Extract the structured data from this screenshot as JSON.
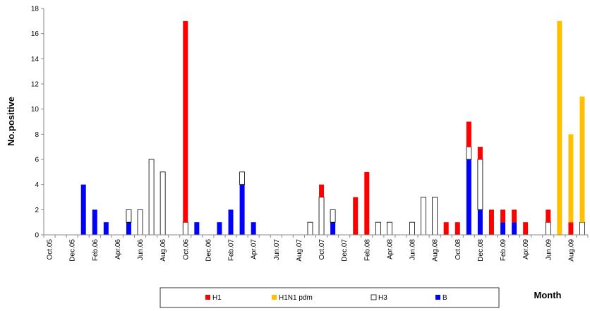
{
  "chart_data": {
    "type": "bar",
    "stacked": true,
    "ylabel": "No.positive",
    "xlabel": "Month",
    "ylim": [
      0,
      18
    ],
    "yticks": [
      0,
      2,
      4,
      6,
      8,
      10,
      12,
      14,
      16,
      18
    ],
    "grid": false,
    "legend_position": "bottom",
    "tick_labels": [
      "Oct.05",
      "Dec.05",
      "Feb.06",
      "Apr.06",
      "Jun.06",
      "Aug.06",
      "Oct.06",
      "Dec.06",
      "Feb.07",
      "Apr.07",
      "Jun.07",
      "Aug.07",
      "Oct.07",
      "Dec.07",
      "Feb.08",
      "Apr.08",
      "Jun.08",
      "Aug.08",
      "Oct.08",
      "Dec.08",
      "Feb.09",
      "Apr.09",
      "Jun.09",
      "Aug.09"
    ],
    "categories": [
      "Oct.05",
      "Nov.05",
      "Dec.05",
      "Jan.06",
      "Feb.06",
      "Mar.06",
      "Apr.06",
      "May.06",
      "Jun.06",
      "Jul.06",
      "Aug.06",
      "Sep.06",
      "Oct.06",
      "Nov.06",
      "Dec.06",
      "Jan.07",
      "Feb.07",
      "Mar.07",
      "Apr.07",
      "May.07",
      "Jun.07",
      "Jul.07",
      "Aug.07",
      "Sep.07",
      "Oct.07",
      "Nov.07",
      "Dec.07",
      "Jan.08",
      "Feb.08",
      "Mar.08",
      "Apr.08",
      "May.08",
      "Jun.08",
      "Jul.08",
      "Aug.08",
      "Sep.08",
      "Oct.08",
      "Nov.08",
      "Dec.08",
      "Jan.09",
      "Feb.09",
      "Mar.09",
      "Apr.09",
      "May.09",
      "Jun.09",
      "Jul.09",
      "Aug.09",
      "Sep.09"
    ],
    "series": [
      {
        "name": "B",
        "color": "#0000FF",
        "values": [
          0,
          0,
          0,
          4,
          2,
          1,
          0,
          1,
          0,
          0,
          0,
          0,
          0,
          1,
          0,
          1,
          2,
          4,
          1,
          0,
          0,
          0,
          0,
          0,
          0,
          1,
          0,
          0,
          0,
          0,
          0,
          0,
          0,
          0,
          0,
          0,
          0,
          6,
          2,
          0,
          1,
          1,
          0,
          0,
          0,
          0,
          0,
          0
        ]
      },
      {
        "name": "H3",
        "color": "#FFFFFF",
        "values": [
          0,
          0,
          0,
          0,
          0,
          0,
          0,
          1,
          2,
          6,
          5,
          0,
          1,
          0,
          0,
          0,
          0,
          1,
          0,
          0,
          0,
          0,
          0,
          1,
          3,
          1,
          0,
          0,
          0,
          1,
          1,
          0,
          1,
          3,
          3,
          0,
          0,
          1,
          4,
          0,
          0,
          0,
          0,
          0,
          1,
          0,
          0,
          1
        ]
      },
      {
        "name": "H1",
        "color": "#FF0000",
        "values": [
          0,
          0,
          0,
          0,
          0,
          0,
          0,
          0,
          0,
          0,
          0,
          0,
          16,
          0,
          0,
          0,
          0,
          0,
          0,
          0,
          0,
          0,
          0,
          0,
          1,
          0,
          0,
          3,
          5,
          0,
          0,
          0,
          0,
          0,
          0,
          1,
          1,
          2,
          1,
          2,
          1,
          1,
          1,
          0,
          1,
          0,
          1,
          0
        ]
      },
      {
        "name": "H1N1 pdm",
        "color": "#FFC000",
        "values": [
          0,
          0,
          0,
          0,
          0,
          0,
          0,
          0,
          0,
          0,
          0,
          0,
          0,
          0,
          0,
          0,
          0,
          0,
          0,
          0,
          0,
          0,
          0,
          0,
          0,
          0,
          0,
          0,
          0,
          0,
          0,
          0,
          0,
          0,
          0,
          0,
          0,
          0,
          0,
          0,
          0,
          0,
          0,
          0,
          0,
          17,
          7,
          10
        ]
      }
    ],
    "legend": [
      {
        "name": "H1",
        "color": "#FF0000"
      },
      {
        "name": "H1N1 pdm",
        "color": "#FFC000"
      },
      {
        "name": "H3",
        "color": "#FFFFFF"
      },
      {
        "name": "B",
        "color": "#0000FF"
      }
    ]
  }
}
